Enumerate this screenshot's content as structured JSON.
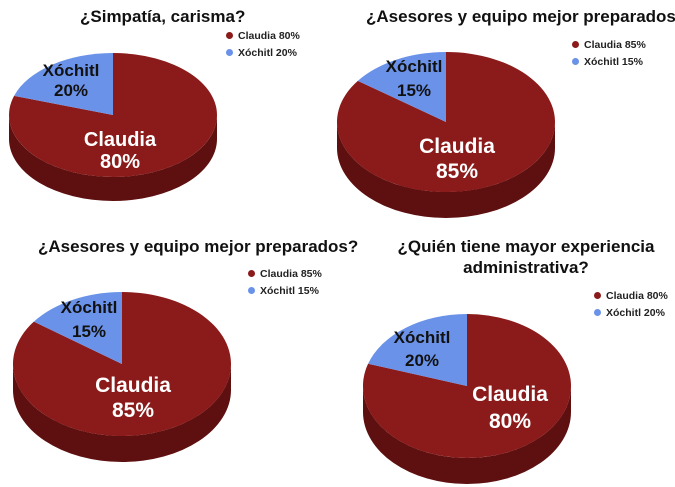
{
  "colors": {
    "claudia": "#8B1A1A",
    "claudia_side": "#5E0F0F",
    "xochitl": "#6A92E8",
    "xochitl_side": "#4067B8"
  },
  "chart_data": [
    {
      "type": "pie",
      "title": "¿Simpatía, carisma?",
      "slices": [
        {
          "name": "Claudia",
          "value": 80
        },
        {
          "name": "Xóchitl",
          "value": 20
        }
      ],
      "legend": [
        "Claudia 80%",
        "Xóchitl 20%"
      ],
      "labels": [
        {
          "name": "Claudia",
          "pct": "80%"
        },
        {
          "name": "Xóchitl",
          "pct": "20%"
        }
      ]
    },
    {
      "type": "pie",
      "title": "¿Asesores y equipo mejor preparados?",
      "slices": [
        {
          "name": "Claudia",
          "value": 85
        },
        {
          "name": "Xóchitl",
          "value": 15
        }
      ],
      "legend": [
        "Claudia 85%",
        "Xóchitl 15%"
      ],
      "labels": [
        {
          "name": "Claudia",
          "pct": "85%"
        },
        {
          "name": "Xóchitl",
          "pct": "15%"
        }
      ]
    },
    {
      "type": "pie",
      "title": "¿Asesores y equipo mejor preparados?",
      "slices": [
        {
          "name": "Claudia",
          "value": 85
        },
        {
          "name": "Xóchitl",
          "value": 15
        }
      ],
      "legend": [
        "Claudia 85%",
        "Xóchitl 15%"
      ],
      "labels": [
        {
          "name": "Claudia",
          "pct": "85%"
        },
        {
          "name": "Xóchitl",
          "pct": "15%"
        }
      ]
    },
    {
      "type": "pie",
      "title_lines": [
        "¿Quién tiene mayor experiencia",
        "administrativa?"
      ],
      "slices": [
        {
          "name": "Claudia",
          "value": 80
        },
        {
          "name": "Xóchitl",
          "value": 20
        }
      ],
      "legend": [
        "Claudia 80%",
        "Xóchitl 20%"
      ],
      "labels": [
        {
          "name": "Claudia",
          "pct": "80%"
        },
        {
          "name": "Xóchitl",
          "pct": "20%"
        }
      ]
    }
  ]
}
